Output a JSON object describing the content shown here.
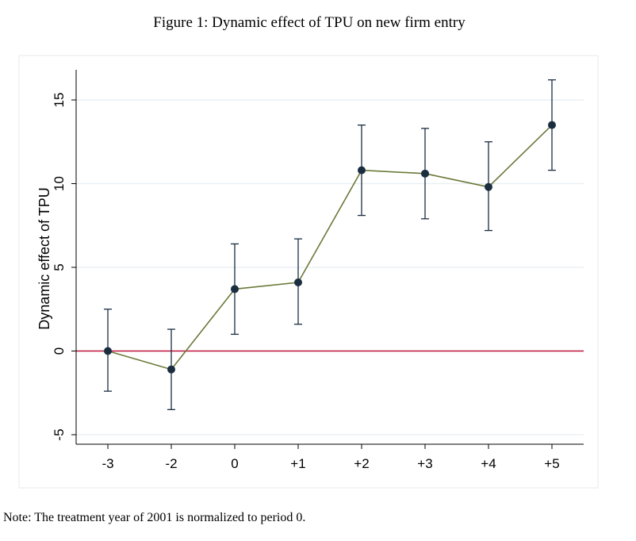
{
  "figure": {
    "title": "Figure 1: Dynamic effect of TPU on new firm entry",
    "note": "Note: The treatment year of 2001 is normalized to period 0."
  },
  "chart_data": {
    "type": "line",
    "title": "Figure 1: Dynamic effect of TPU on new firm entry",
    "xlabel": "",
    "ylabel": "Dynamic effect of TPU",
    "categories": [
      "-3",
      "-2",
      "0",
      "+1",
      "+2",
      "+3",
      "+4",
      "+5"
    ],
    "series": [
      {
        "values": [
          0.0,
          -1.1,
          3.7,
          4.1,
          10.8,
          10.6,
          9.8,
          13.5
        ],
        "ci_lower": [
          -2.4,
          -3.5,
          1.0,
          1.6,
          8.1,
          7.9,
          7.2,
          10.8
        ],
        "ci_upper": [
          2.5,
          1.3,
          6.4,
          6.7,
          13.5,
          13.3,
          12.5,
          16.2
        ]
      }
    ],
    "yticks": [
      -5,
      0,
      5,
      10,
      15
    ],
    "ylim": [
      -5.5,
      16.8
    ],
    "reference_line": {
      "y": 0,
      "color": "#c0143c"
    },
    "colors": {
      "line": "#6b7a3a",
      "marker": "#1a2e40",
      "errorbar": "#1a2e40",
      "grid": "#e6eef2"
    },
    "grid": true
  }
}
